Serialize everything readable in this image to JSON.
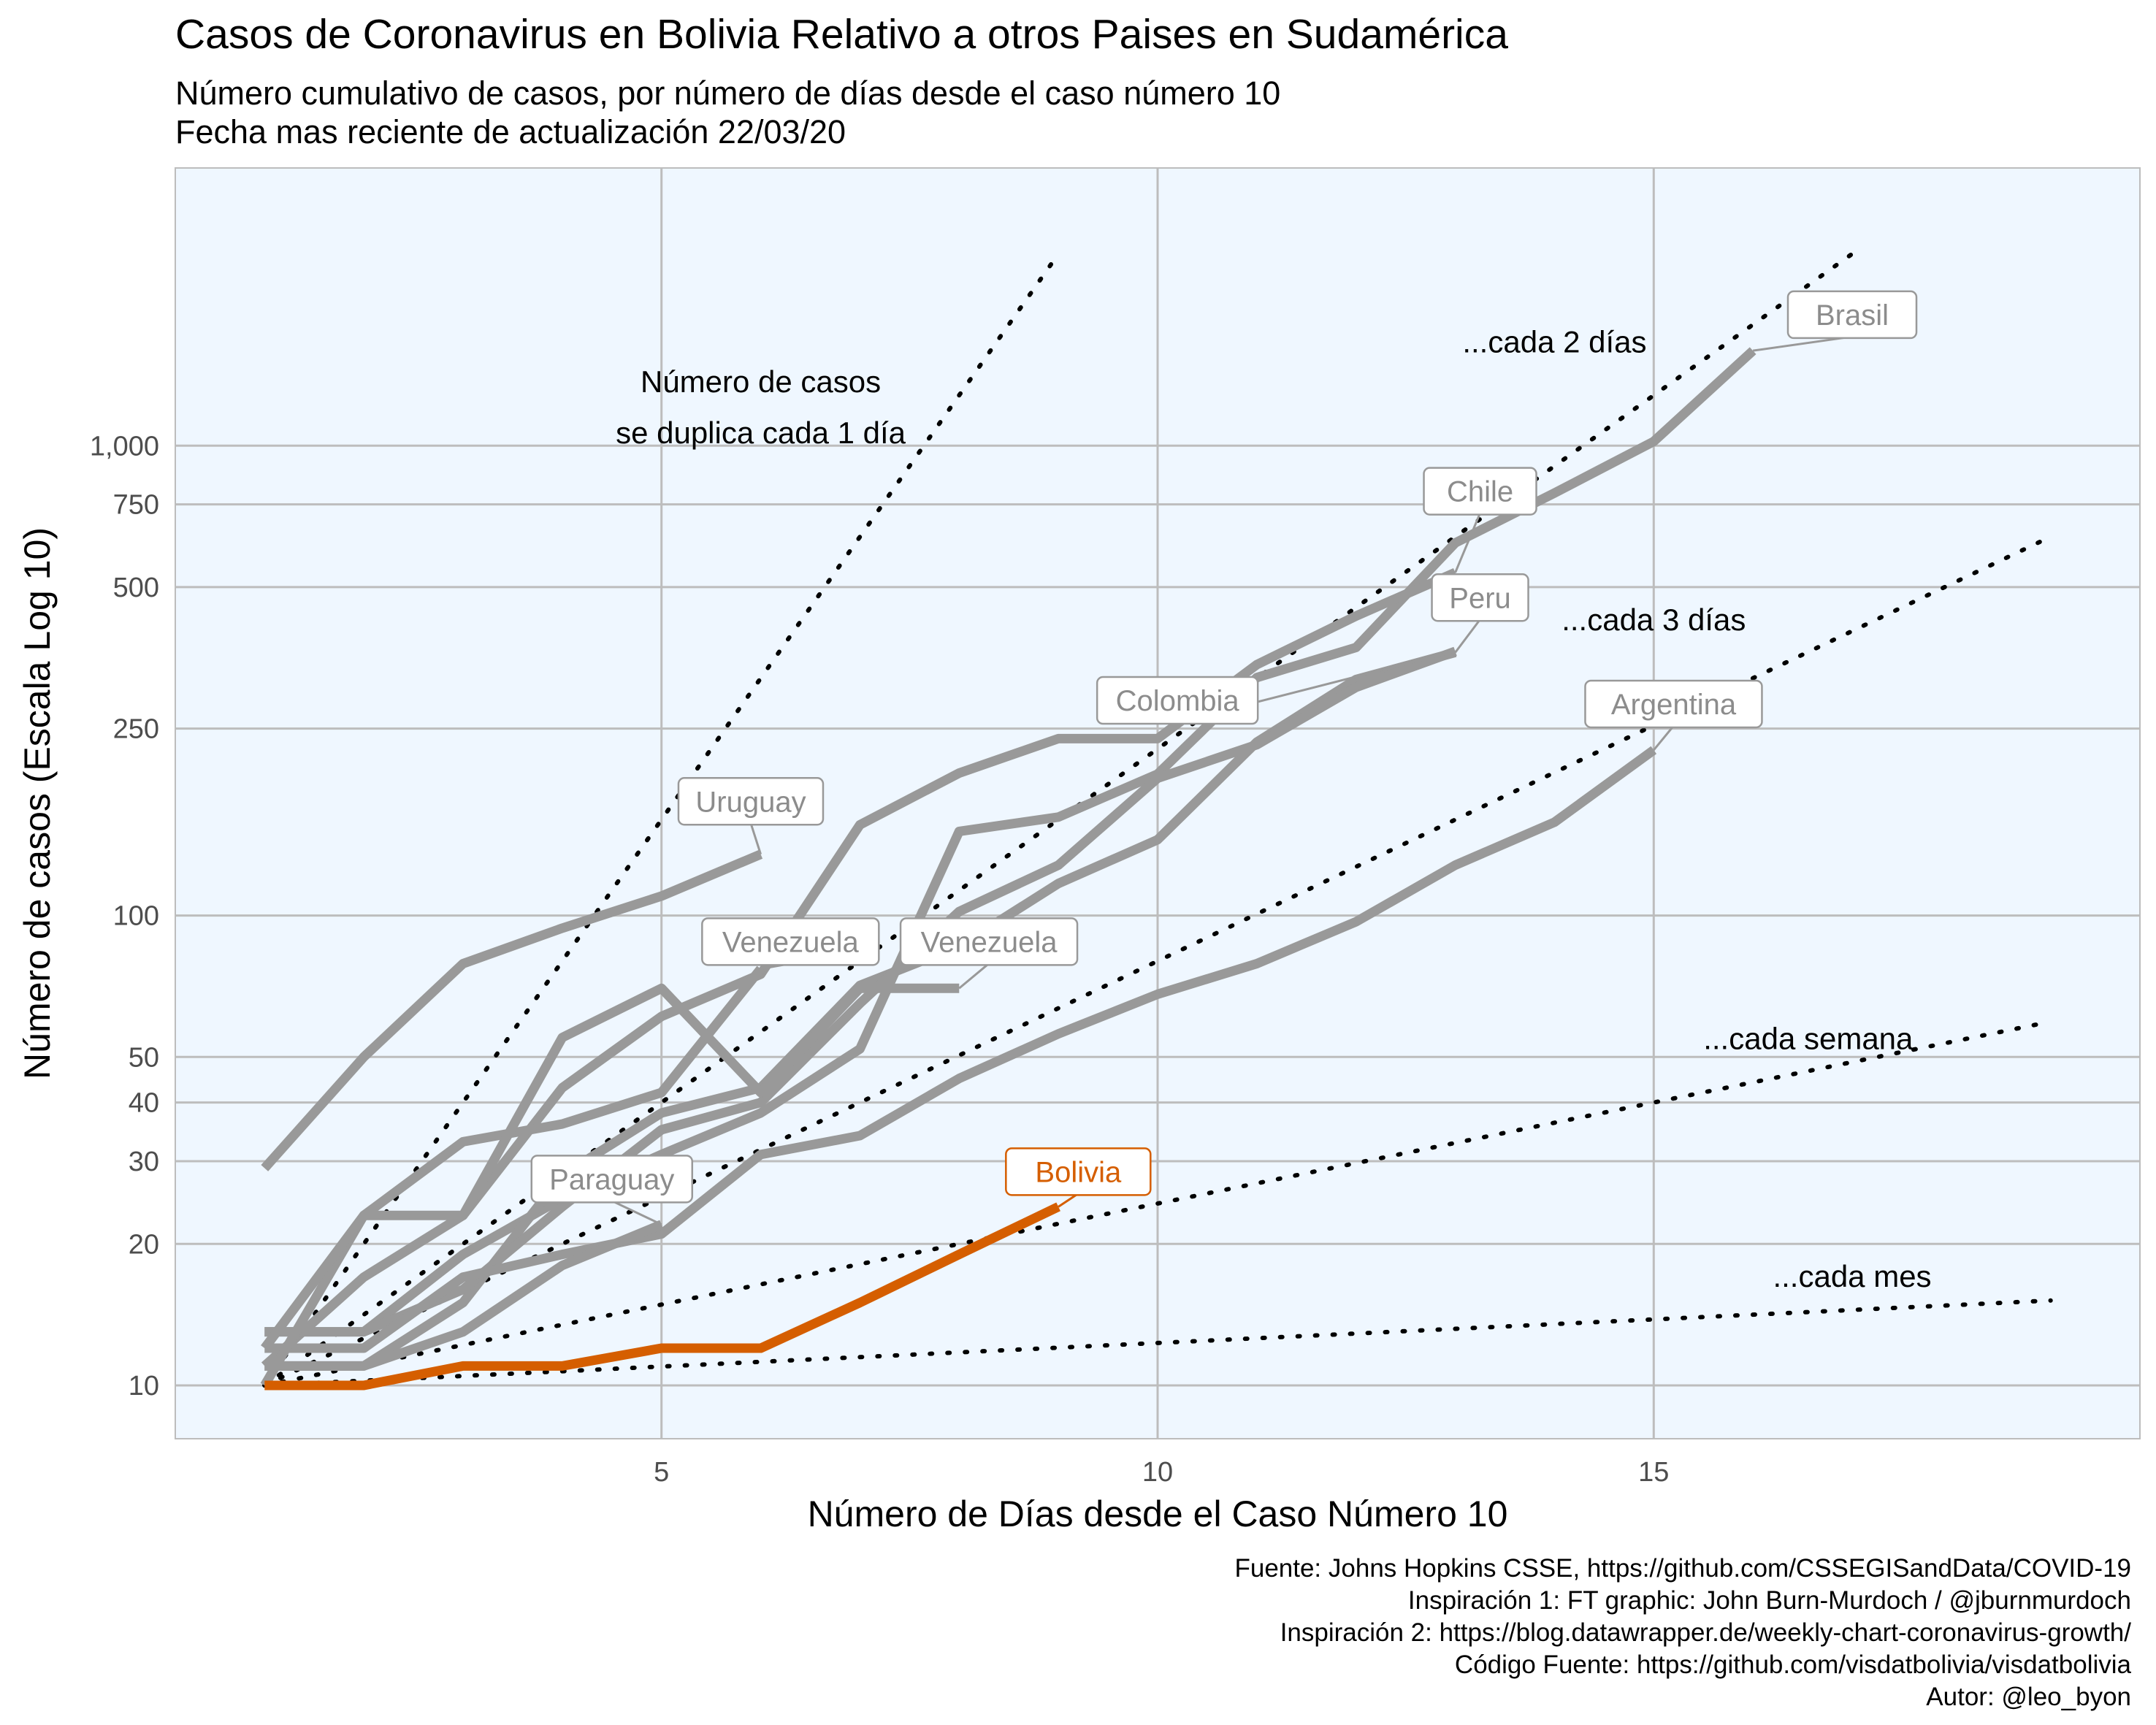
{
  "chart_data": {
    "type": "line",
    "title": "Casos de Coronavirus en Bolivia Relativo a otros Paises en Sudamérica",
    "subtitle_lines": [
      "Número cumulativo de casos, por número de días desde el caso número 10",
      "Fecha mas reciente de actualización 22/03/20"
    ],
    "xlabel": "Número de Días desde el Caso Número 10",
    "ylabel": "Número de casos (Escala Log 10)",
    "xlim": [
      0.1,
      19.9
    ],
    "ylim": [
      7.7,
      3900
    ],
    "yscale": "log10",
    "x_ticks": [
      5,
      10,
      15
    ],
    "x_tick_labels": [
      "5",
      "10",
      "15"
    ],
    "y_ticks": [
      10,
      20,
      30,
      40,
      50,
      100,
      250,
      500,
      750,
      1000
    ],
    "y_tick_labels": [
      "10",
      "20",
      "30",
      "40",
      "50",
      "100",
      "250",
      "500",
      "750",
      "1,000"
    ],
    "grid": true,
    "background_color": "#eff7ff",
    "series": [
      {
        "name": "Brasil",
        "color": "#999999",
        "x": [
          1,
          2,
          3,
          4,
          5,
          6,
          7,
          8,
          9,
          10,
          11,
          12,
          13,
          14,
          15,
          16,
          17
        ],
        "y": [
          13,
          13,
          19,
          25,
          31,
          38,
          52,
          151,
          162,
          200,
          321,
          372,
          621,
          793,
          1021,
          1593,
          0
        ]
      },
      {
        "name": "Chile",
        "color": "#999999",
        "x": [
          1,
          2,
          3,
          4,
          5,
          6,
          7,
          8,
          9,
          10,
          11,
          12,
          13
        ],
        "y": [
          11,
          17,
          23,
          43,
          61,
          75,
          156,
          201,
          238,
          238,
          342,
          434,
          537
        ]
      },
      {
        "name": "Peru",
        "color": "#999999",
        "x": [
          1,
          2,
          3,
          4,
          5,
          6,
          7,
          8,
          9,
          10,
          11,
          12,
          13
        ],
        "y": [
          11,
          11,
          15,
          28,
          38,
          43,
          71,
          86,
          117,
          145,
          234,
          318,
          363
        ]
      },
      {
        "name": "Colombia",
        "color": "#999999",
        "x": [
          1,
          2,
          3,
          4,
          5,
          6,
          7,
          8,
          9,
          10,
          11,
          12,
          13
        ],
        "y": [
          13,
          13,
          16,
          24,
          35,
          40,
          65,
          102,
          128,
          196,
          231,
          306,
          365
        ]
      },
      {
        "name": "Argentina",
        "color": "#999999",
        "x": [
          1,
          2,
          3,
          4,
          5,
          6,
          7,
          8,
          9,
          10,
          11,
          12,
          13,
          14,
          15
        ],
        "y": [
          12,
          12,
          17,
          19,
          21,
          31,
          34,
          45,
          56,
          68,
          79,
          97,
          128,
          158,
          225
        ]
      },
      {
        "name": "Uruguay",
        "color": "#999999",
        "x": [
          1,
          2,
          3,
          4,
          5,
          6
        ],
        "y": [
          29,
          50,
          79,
          94,
          110,
          135
        ]
      },
      {
        "name": "Venezuela",
        "color": "#999999",
        "x": [
          1,
          2,
          3,
          4,
          5,
          6
        ],
        "y": [
          10,
          23,
          33,
          36,
          42,
          77
        ]
      },
      {
        "name": "Venezuela",
        "color": "#999999",
        "x": [
          1,
          2,
          3,
          4,
          5,
          6,
          7,
          8
        ],
        "y": [
          12,
          23,
          23,
          55,
          70,
          42,
          70,
          70
        ]
      },
      {
        "name": "Paraguay",
        "color": "#999999",
        "x": [
          1,
          2,
          3,
          4,
          5
        ],
        "y": [
          11,
          11,
          13,
          18,
          22
        ]
      },
      {
        "name": "Bolivia",
        "color": "#d55e00",
        "x": [
          1,
          2,
          3,
          4,
          5,
          6,
          7,
          8,
          9
        ],
        "y": [
          10,
          10,
          11,
          11,
          12,
          12,
          15,
          19,
          24
        ]
      }
    ],
    "reference_lines": [
      {
        "label": "Número de casos se duplica cada 1 día",
        "label_lines": [
          "Número de casos",
          "se duplica cada 1 día"
        ],
        "doubling_days": 1,
        "x_end": 9
      },
      {
        "label": "...cada 2 días",
        "doubling_days": 2,
        "x_end": 17
      },
      {
        "label": "...cada 3 días",
        "doubling_days": 3,
        "x_end": 19
      },
      {
        "label": "...cada semana",
        "doubling_days": 7,
        "x_end": 19
      },
      {
        "label": "...cada mes",
        "doubling_days": 30,
        "x_end": 19
      }
    ],
    "source_lines": [
      "Fuente: Johns Hopkins CSSE, https://github.com/CSSEGISandData/COVID-19",
      "Inspiración 1: FT graphic: John Burn-Murdoch / @jburnmurdoch",
      "Inspiración 2: https://blog.datawrapper.de/weekly-chart-coronavirus-growth/",
      "Código Fuente: https://github.com/visdatbolivia/visdatbolivia",
      "Autor: @leo_byon"
    ]
  }
}
